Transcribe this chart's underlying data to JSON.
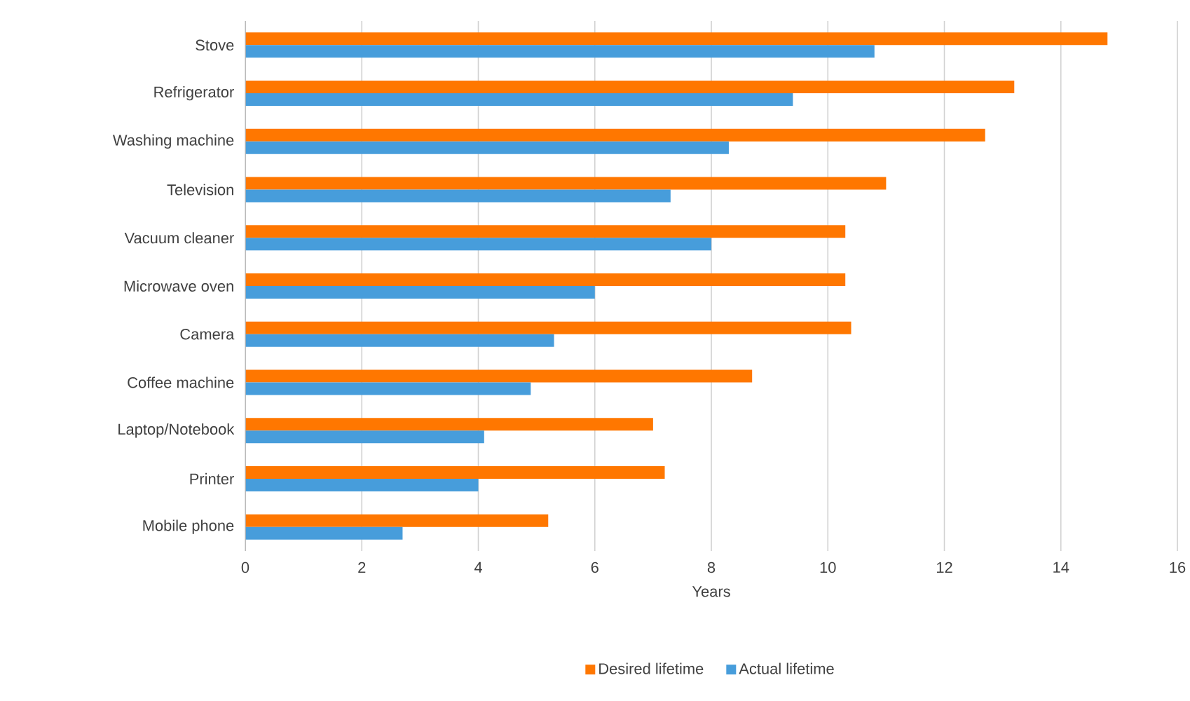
{
  "chart_data": {
    "type": "bar",
    "orientation": "horizontal",
    "xlabel": "Years",
    "categories": [
      "Stove",
      "Refrigerator",
      "Washing machine",
      "Television",
      "Vacuum cleaner",
      "Microwave oven",
      "Camera",
      "Coffee machine",
      "Laptop/Notebook",
      "Printer",
      "Mobile phone"
    ],
    "series": [
      {
        "name": "Desired lifetime",
        "color": "#ff7700",
        "values": [
          14.8,
          13.2,
          12.7,
          11.0,
          10.3,
          10.3,
          10.4,
          8.7,
          7.0,
          7.2,
          5.2
        ]
      },
      {
        "name": "Actual lifetime",
        "color": "#479ddb",
        "values": [
          10.8,
          9.4,
          8.3,
          7.3,
          8.0,
          6.0,
          5.3,
          4.9,
          4.1,
          4.0,
          2.7
        ]
      }
    ],
    "xlim": [
      0,
      16
    ],
    "xticks": [
      0,
      2,
      4,
      6,
      8,
      10,
      12,
      14,
      16
    ],
    "grid": "x",
    "legend": "bottom"
  }
}
